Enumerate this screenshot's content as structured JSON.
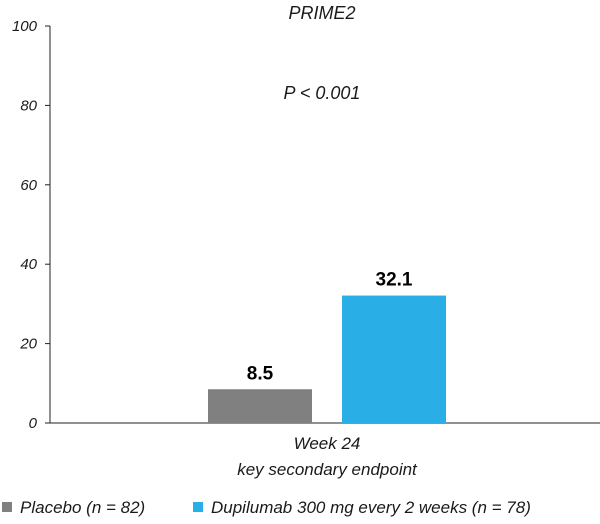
{
  "chart_data": {
    "type": "bar",
    "title": "PRIME2",
    "annotation": "P < 0.001",
    "categories": [
      "Week 24",
      "key secondary endpoint"
    ],
    "ylim": [
      0,
      100
    ],
    "yticks": [
      0,
      20,
      40,
      60,
      80,
      100
    ],
    "grid": false,
    "legend_position": "bottom",
    "series": [
      {
        "name": "Placebo (n = 82)",
        "value": 8.5,
        "label": "8.5",
        "color": "#808080"
      },
      {
        "name": "Dupilumab 300 mg every 2 weeks (n = 78)",
        "value": 32.1,
        "label": "32.1",
        "color": "#29aee6"
      }
    ]
  }
}
